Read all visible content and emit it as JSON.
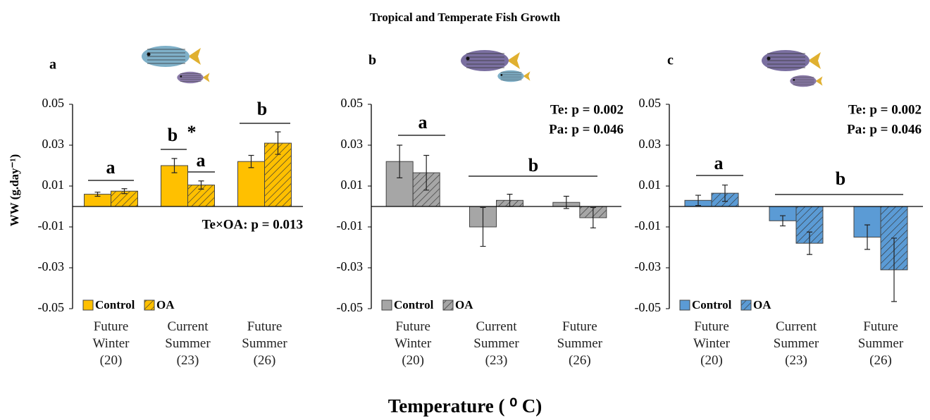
{
  "title": "Tropical and Temperate Fish Growth",
  "x_label": "Temperature ( ⁰ C)",
  "chart_data": [
    {
      "type": "bar",
      "panel_label": "a",
      "ylabel": "WW (g.day⁻¹)",
      "categories": [
        "Future\nWinter\n(20)",
        "Current\nSummer\n(23)",
        "Future\nSummer\n(26)"
      ],
      "series": [
        {
          "name": "Control",
          "color": "#FFC000",
          "hatch": false,
          "values": [
            0.006,
            0.02,
            0.022
          ],
          "errors": [
            0.001,
            0.0035,
            0.003
          ]
        },
        {
          "name": "OA",
          "color": "#FFC000",
          "hatch": true,
          "values": [
            0.0075,
            0.0105,
            0.031
          ],
          "errors": [
            0.0012,
            0.002,
            0.0055
          ]
        }
      ],
      "ylim": [
        -0.05,
        0.05
      ],
      "yticks": [
        -0.05,
        -0.03,
        -0.01,
        0.01,
        0.03,
        0.05
      ],
      "annotations": [
        "a",
        "b",
        "*",
        "a",
        "b"
      ],
      "stats": [
        "Te×OA: p = 0.013"
      ]
    },
    {
      "type": "bar",
      "panel_label": "b",
      "categories": [
        "Future\nWinter\n(20)",
        "Current\nSummer\n(23)",
        "Future\nSummer\n(26)"
      ],
      "series": [
        {
          "name": "Control",
          "color": "#A6A6A6",
          "hatch": false,
          "values": [
            0.022,
            -0.01,
            0.002
          ],
          "errors": [
            0.008,
            0.0095,
            0.003
          ]
        },
        {
          "name": "OA",
          "color": "#A6A6A6",
          "hatch": true,
          "values": [
            0.0165,
            0.003,
            -0.0055
          ],
          "errors": [
            0.0085,
            0.003,
            0.005
          ]
        }
      ],
      "ylim": [
        -0.05,
        0.05
      ],
      "yticks": [
        -0.05,
        -0.03,
        -0.01,
        0.01,
        0.03,
        0.05
      ],
      "annotations": [
        "a",
        "b"
      ],
      "stats": [
        "Te: p = 0.002",
        "Pa: p = 0.046"
      ]
    },
    {
      "type": "bar",
      "panel_label": "c",
      "categories": [
        "Future\nWinter\n(20)",
        "Current\nSummer\n(23)",
        "Future\nSummer\n(26)"
      ],
      "series": [
        {
          "name": "Control",
          "color": "#5B9BD5",
          "hatch": false,
          "values": [
            0.003,
            -0.007,
            -0.015
          ],
          "errors": [
            0.0025,
            0.0025,
            0.006
          ]
        },
        {
          "name": "OA",
          "color": "#5B9BD5",
          "hatch": true,
          "values": [
            0.0065,
            -0.018,
            -0.031
          ],
          "errors": [
            0.004,
            0.0055,
            0.0155
          ]
        }
      ],
      "ylim": [
        -0.05,
        0.05
      ],
      "yticks": [
        -0.05,
        -0.03,
        -0.01,
        0.01,
        0.03,
        0.05
      ],
      "annotations": [
        "a",
        "b"
      ],
      "stats": [
        "Te: p = 0.002",
        "Pa: p = 0.046"
      ]
    }
  ]
}
